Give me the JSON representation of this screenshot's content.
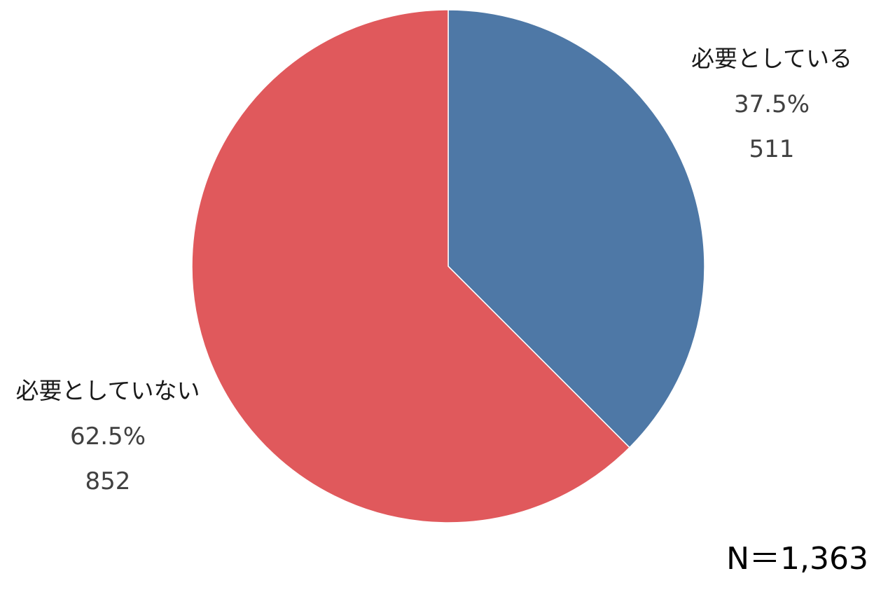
{
  "chart_data": {
    "type": "pie",
    "start_angle_deg": 0,
    "direction": "clockwise",
    "slices": [
      {
        "label": "必要としている",
        "percent_label": "37.5%",
        "count_label": "511",
        "value": 511,
        "percent": 37.5,
        "color": "#4e78a6"
      },
      {
        "label": "必要としていない",
        "percent_label": "62.5%",
        "count_label": "852",
        "value": 852,
        "percent": 62.5,
        "color": "#e0595c"
      }
    ],
    "annotation": "N＝1,363"
  }
}
